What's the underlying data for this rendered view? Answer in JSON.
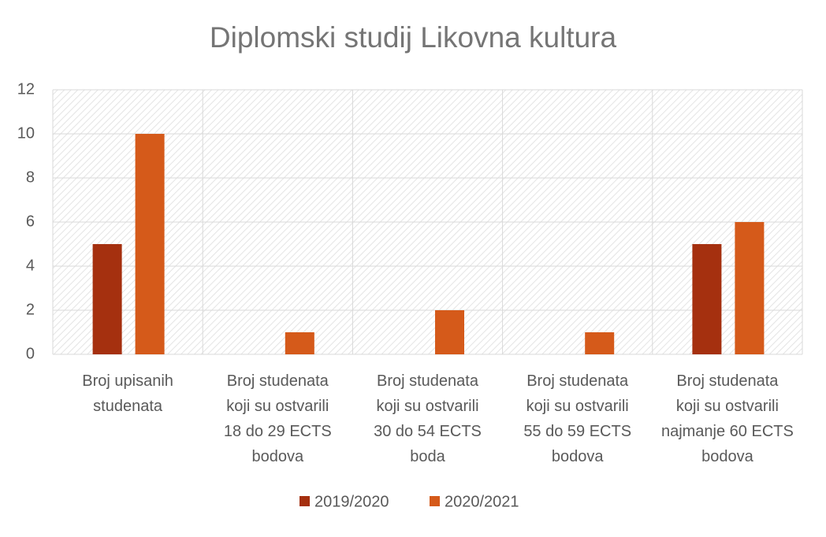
{
  "chart_data": {
    "type": "bar",
    "title": "Diplomski studij Likovna kultura",
    "categories": [
      "Broj upisanih\nstudenata",
      "Broj studenata\nkoji su ostvarili\n18 do 29 ECTS\nbodova",
      "Broj studenata\nkoji su ostvarili\n30 do 54 ECTS\nboda",
      "Broj studenata\nkoji su ostvarili\n55 do 59 ECTS\nbodova",
      "Broj studenata\nkoji su ostvarili\nnajmanje 60 ECTS\nbodova"
    ],
    "series": [
      {
        "name": "2019/2020",
        "color": "#a5300f",
        "values": [
          5,
          0,
          0,
          0,
          5
        ]
      },
      {
        "name": "2020/2021",
        "color": "#d55a1a",
        "values": [
          10,
          1,
          2,
          1,
          6
        ]
      }
    ],
    "ylim": [
      0,
      12
    ],
    "yticks": [
      0,
      2,
      4,
      6,
      8,
      10,
      12
    ],
    "grid": true,
    "legend": "bottom"
  }
}
